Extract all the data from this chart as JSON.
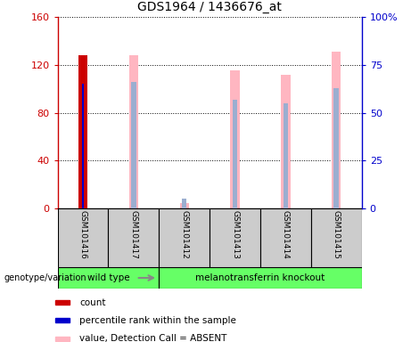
{
  "title": "GDS1964 / 1436676_at",
  "samples": [
    "GSM101416",
    "GSM101417",
    "GSM101412",
    "GSM101413",
    "GSM101414",
    "GSM101415"
  ],
  "groups": [
    "wild type",
    "wild type",
    "melanotransferrin knockout",
    "melanotransferrin knockout",
    "melanotransferrin knockout",
    "melanotransferrin knockout"
  ],
  "group_labels": [
    "wild type",
    "melanotransferrin knockout"
  ],
  "ylim_left": [
    0,
    160
  ],
  "ylim_right": [
    0,
    100
  ],
  "yticks_left": [
    0,
    40,
    80,
    120,
    160
  ],
  "yticks_right": [
    0,
    25,
    50,
    75,
    100
  ],
  "ytick_labels_left": [
    "0",
    "40",
    "80",
    "120",
    "160"
  ],
  "ytick_labels_right": [
    "0",
    "25",
    "50",
    "75",
    "100%"
  ],
  "left_color": "#cc0000",
  "right_color": "#0000cc",
  "bar_bg_color": "#cccccc",
  "count_values": [
    128,
    0,
    0,
    0,
    0,
    0
  ],
  "count_color": "#cc0000",
  "percentile_values": [
    65,
    0,
    0,
    0,
    0,
    0
  ],
  "percentile_color": "#0000cc",
  "value_absent_values": [
    0,
    80,
    3,
    72,
    70,
    82
  ],
  "value_absent_color": "#ffb6c1",
  "rank_absent_values": [
    0,
    66,
    5,
    57,
    55,
    63
  ],
  "rank_absent_color": "#9baed0",
  "legend_items": [
    {
      "color": "#cc0000",
      "label": "count"
    },
    {
      "color": "#0000cc",
      "label": "percentile rank within the sample"
    },
    {
      "color": "#ffb6c1",
      "label": "value, Detection Call = ABSENT"
    },
    {
      "color": "#9baed0",
      "label": "rank, Detection Call = ABSENT"
    }
  ],
  "genotype_label": "genotype/variation",
  "bar_width": 0.18,
  "grid_linestyle": ":"
}
